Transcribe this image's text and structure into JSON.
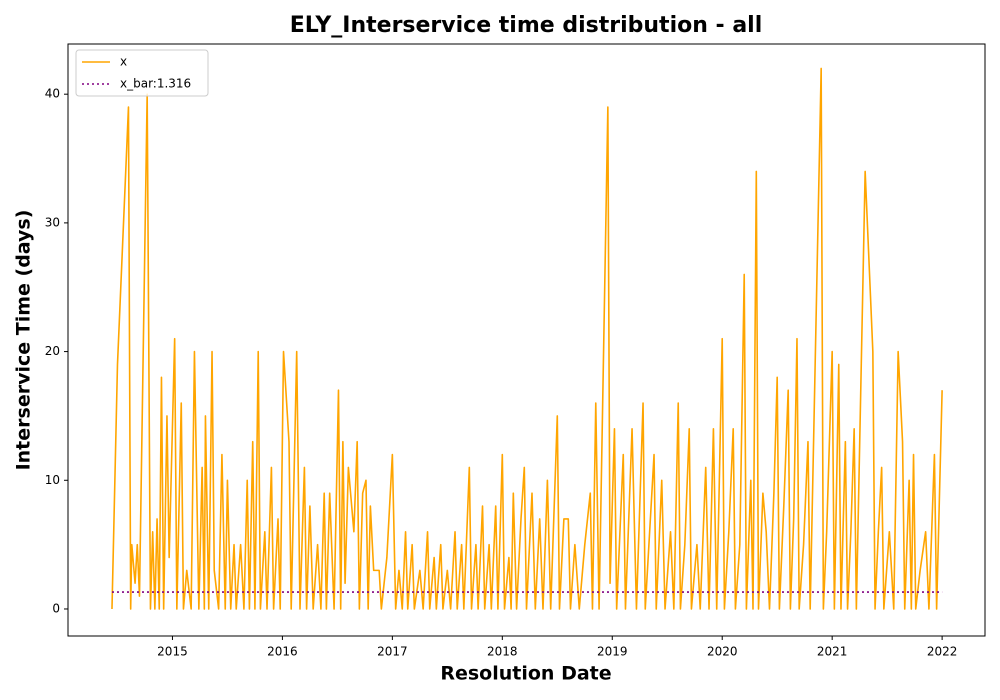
{
  "chart_data": {
    "type": "line",
    "title": "ELY_Interservice time distribution - all",
    "x_label": "Resolution Date",
    "y_label": "Interservice Time (days)",
    "xlim": [
      2014.05,
      2022.39
    ],
    "xticks": [
      2015,
      2016,
      2017,
      2018,
      2019,
      2020,
      2021,
      2022
    ],
    "ylim": [
      -2.1,
      43.9
    ],
    "yticks": [
      0,
      10,
      20,
      30,
      40
    ],
    "legend": "upper left",
    "series": [
      {
        "name": "x",
        "color": "#ffa500",
        "style": "solid",
        "x": [
          2014.45,
          2014.5,
          2014.6,
          2014.62,
          2014.63,
          2014.66,
          2014.68,
          2014.7,
          2014.77,
          2014.8,
          2014.82,
          2014.84,
          2014.86,
          2014.88,
          2014.9,
          2014.92,
          2014.95,
          2014.97,
          2015.02,
          2015.04,
          2015.08,
          2015.1,
          2015.13,
          2015.17,
          2015.2,
          2015.24,
          2015.27,
          2015.29,
          2015.3,
          2015.33,
          2015.36,
          2015.38,
          2015.42,
          2015.45,
          2015.48,
          2015.5,
          2015.53,
          2015.56,
          2015.58,
          2015.62,
          2015.65,
          2015.68,
          2015.7,
          2015.73,
          2015.75,
          2015.78,
          2015.8,
          2015.84,
          2015.86,
          2015.9,
          2015.92,
          2015.96,
          2015.98,
          2016.01,
          2016.06,
          2016.08,
          2016.1,
          2016.13,
          2016.16,
          2016.2,
          2016.22,
          2016.25,
          2016.28,
          2016.32,
          2016.35,
          2016.38,
          2016.4,
          2016.43,
          2016.47,
          2016.51,
          2016.53,
          2016.55,
          2016.57,
          2016.6,
          2016.65,
          2016.68,
          2016.7,
          2016.73,
          2016.76,
          2016.78,
          2016.8,
          2016.83,
          2016.88,
          2016.9,
          2016.95,
          2017.0,
          2017.03,
          2017.06,
          2017.09,
          2017.12,
          2017.14,
          2017.18,
          2017.2,
          2017.25,
          2017.28,
          2017.32,
          2017.34,
          2017.38,
          2017.4,
          2017.44,
          2017.46,
          2017.5,
          2017.53,
          2017.57,
          2017.59,
          2017.63,
          2017.65,
          2017.7,
          2017.72,
          2017.76,
          2017.78,
          2017.82,
          2017.84,
          2017.88,
          2017.9,
          2017.94,
          2017.96,
          2018.0,
          2018.02,
          2018.06,
          2018.08,
          2018.1,
          2018.13,
          2018.17,
          2018.2,
          2018.22,
          2018.27,
          2018.3,
          2018.34,
          2018.37,
          2018.41,
          2018.44,
          2018.5,
          2018.52,
          2018.56,
          2018.6,
          2018.62,
          2018.66,
          2018.7,
          2018.75,
          2018.8,
          2018.82,
          2018.85,
          2018.88,
          2018.96,
          2018.98,
          2019.02,
          2019.04,
          2019.1,
          2019.12,
          2019.18,
          2019.22,
          2019.28,
          2019.3,
          2019.38,
          2019.4,
          2019.45,
          2019.48,
          2019.53,
          2019.56,
          2019.6,
          2019.62,
          2019.66,
          2019.7,
          2019.72,
          2019.77,
          2019.8,
          2019.85,
          2019.88,
          2019.92,
          2019.95,
          2020.0,
          2020.02,
          2020.06,
          2020.1,
          2020.12,
          2020.16,
          2020.2,
          2020.22,
          2020.26,
          2020.28,
          2020.31,
          2020.33,
          2020.37,
          2020.4,
          2020.43,
          2020.47,
          2020.5,
          2020.52,
          2020.56,
          2020.6,
          2020.62,
          2020.65,
          2020.68,
          2020.7,
          2020.74,
          2020.78,
          2020.8,
          2020.9,
          2020.92,
          2020.95,
          2021.0,
          2021.02,
          2021.06,
          2021.08,
          2021.12,
          2021.14,
          2021.17,
          2021.2,
          2021.22,
          2021.3,
          2021.37,
          2021.39,
          2021.42,
          2021.45,
          2021.47,
          2021.52,
          2021.56,
          2021.6,
          2021.64,
          2021.66,
          2021.7,
          2021.72,
          2021.74,
          2021.76,
          2021.8,
          2021.85,
          2021.88,
          2021.93,
          2021.95,
          2022.0
        ],
        "values": [
          0,
          19,
          39,
          0,
          5,
          2,
          5,
          1,
          40,
          0,
          6,
          0,
          7,
          0,
          18,
          0,
          15,
          4,
          21,
          0,
          16,
          0,
          3,
          0,
          20,
          0,
          11,
          0,
          15,
          0,
          20,
          3,
          0,
          12,
          0,
          10,
          0,
          5,
          0,
          5,
          0,
          10,
          0,
          13,
          0,
          20,
          0,
          6,
          0,
          11,
          0,
          7,
          0,
          20,
          13,
          0,
          8,
          20,
          0,
          11,
          0,
          8,
          0,
          5,
          0,
          9,
          0,
          9,
          0,
          17,
          0,
          13,
          2,
          11,
          6,
          13,
          0,
          9,
          10,
          0,
          8,
          3,
          3,
          0,
          4,
          12,
          0,
          3,
          0,
          6,
          0,
          5,
          0,
          3,
          0,
          6,
          0,
          4,
          0,
          5,
          0,
          3,
          0,
          6,
          0,
          5,
          0,
          11,
          0,
          5,
          0,
          8,
          0,
          5,
          0,
          8,
          0,
          12,
          0,
          4,
          0,
          9,
          0,
          7,
          11,
          0,
          9,
          0,
          7,
          0,
          10,
          0,
          15,
          0,
          7,
          7,
          0,
          5,
          0,
          5,
          9,
          0,
          16,
          0,
          39,
          2,
          14,
          0,
          12,
          0,
          14,
          0,
          16,
          0,
          12,
          0,
          10,
          0,
          6,
          0,
          16,
          0,
          5,
          14,
          0,
          5,
          0,
          11,
          0,
          14,
          0,
          21,
          0,
          6,
          14,
          0,
          5,
          26,
          0,
          10,
          0,
          34,
          0,
          9,
          6,
          0,
          9,
          18,
          0,
          8,
          17,
          0,
          7,
          21,
          0,
          5,
          13,
          0,
          42,
          0,
          6,
          20,
          0,
          19,
          0,
          13,
          0,
          6,
          14,
          0,
          34,
          20,
          0,
          6,
          11,
          0,
          6,
          0,
          20,
          13,
          0,
          10,
          0,
          12,
          0,
          3,
          6,
          0,
          12,
          0,
          17
        ]
      },
      {
        "name": "x_bar:1.316",
        "color": "#800080",
        "style": "dotted",
        "x": [
          2014.45,
          2022.0
        ],
        "values": [
          1.316,
          1.316
        ]
      }
    ]
  }
}
